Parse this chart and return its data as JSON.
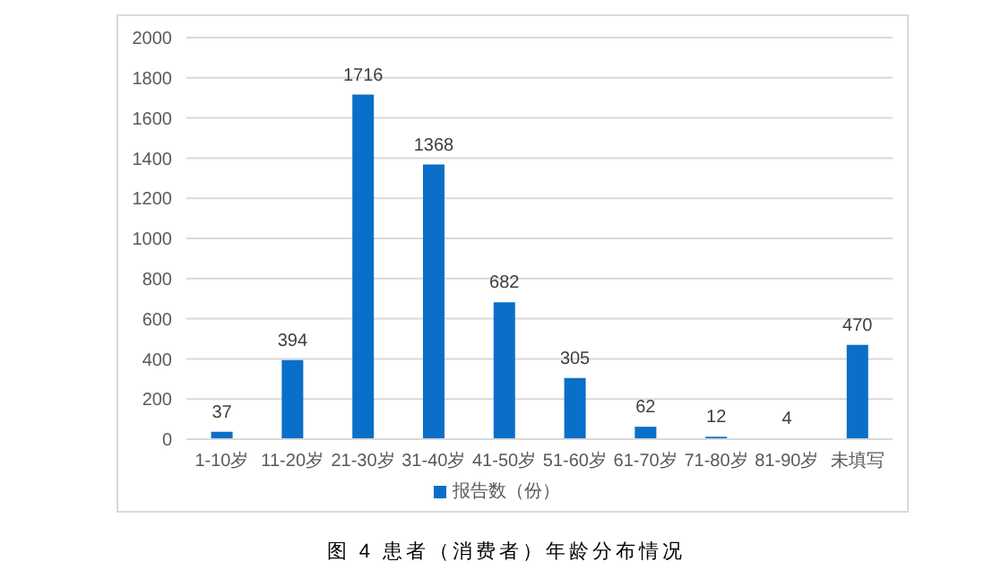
{
  "chart_data": {
    "type": "bar",
    "categories": [
      "1-10岁",
      "11-20岁",
      "21-30岁",
      "31-40岁",
      "41-50岁",
      "51-60岁",
      "61-70岁",
      "71-80岁",
      "81-90岁",
      "未填写"
    ],
    "series": [
      {
        "name": "报告数（份）",
        "color": "#0a6fc8",
        "values": [
          37,
          394,
          1716,
          1368,
          682,
          305,
          62,
          12,
          4,
          470
        ]
      }
    ],
    "ylim": [
      0,
      2000
    ],
    "yticks": [
      0,
      200,
      400,
      600,
      800,
      1000,
      1200,
      1400,
      1600,
      1800,
      2000
    ],
    "grid": "y",
    "legend": "bottom",
    "data_labels": true,
    "annotations": [
      "图 4 患者（消费者）年龄分布情况"
    ]
  }
}
